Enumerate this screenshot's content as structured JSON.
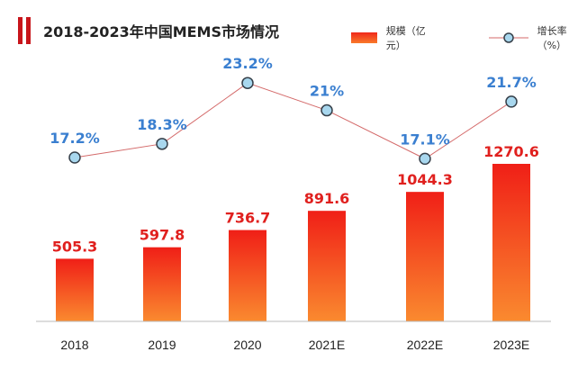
{
  "title": "2018-2023年中国MEMS市场情况",
  "legend": {
    "bar_label": "规模（亿元）",
    "line_label": "增长率（%）"
  },
  "colors": {
    "bar_top": "#f01f17",
    "bar_bottom": "#fa8a2f",
    "line": "#d46a6a",
    "marker_fill": "#a8d7ee",
    "marker_stroke": "#36404a",
    "bar_label": "#e0201e",
    "line_label": "#3a7fd0",
    "title_accent": "#c8151b"
  },
  "chart_data": {
    "type": "bar",
    "title": "2018-2023年中国MEMS市场情况",
    "categories": [
      "2018",
      "2019",
      "2020",
      "2021E",
      "2022E",
      "2023E"
    ],
    "series": [
      {
        "name": "规模（亿元）",
        "type": "bar",
        "values": [
          505.3,
          597.8,
          736.7,
          891.6,
          1044.3,
          1270.6
        ],
        "labels": [
          "505.3",
          "597.8",
          "736.7",
          "891.6",
          "1044.3",
          "1270.6"
        ]
      },
      {
        "name": "增长率（%）",
        "type": "line",
        "values": [
          17.2,
          18.3,
          23.2,
          21,
          17.1,
          21.7
        ],
        "labels": [
          "17.2%",
          "18.3%",
          "23.2%",
          "21%",
          "17.1%",
          "21.7%"
        ]
      }
    ],
    "grid": false,
    "legend_position": "top-right"
  }
}
